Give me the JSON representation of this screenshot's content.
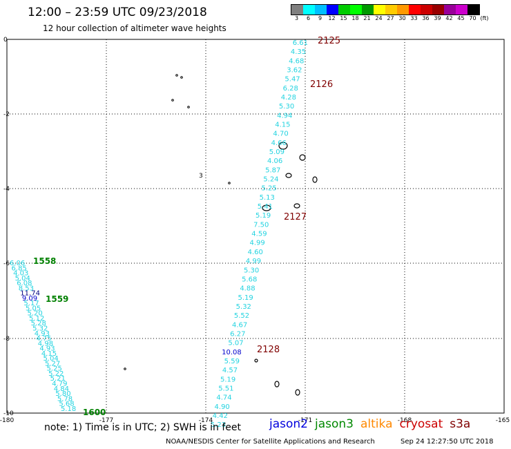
{
  "header": {
    "title": "12:00 – 23:59 UTC 09/23/2018",
    "subtitle": "12 hour collection of altimeter wave heights"
  },
  "colorbar": {
    "labels": [
      "3",
      "6",
      "9",
      "12",
      "15",
      "18",
      "21",
      "24",
      "27",
      "30",
      "33",
      "36",
      "39",
      "42",
      "45",
      "70"
    ],
    "unit": "(ft)",
    "colors": [
      "#808080",
      "#00ffff",
      "#00bfff",
      "#0000ff",
      "#00cc00",
      "#00ff00",
      "#009900",
      "#ffff00",
      "#ffcc00",
      "#ff9900",
      "#ff0000",
      "#cc0000",
      "#990000",
      "#990099",
      "#cc00cc",
      "#000000"
    ]
  },
  "axes": {
    "x_ticks": [
      "-180",
      "-177",
      "-174",
      "-171",
      "-168",
      "-165"
    ],
    "y_ticks": [
      "0",
      "-2",
      "-4",
      "-6",
      "-8",
      "-10"
    ]
  },
  "islands": [
    "3"
  ],
  "tracks": {
    "main": {
      "passes": [
        "2125",
        "2126",
        "2127",
        "2128"
      ],
      "values": [
        "6.61",
        "4.35",
        "4.68",
        "3.62",
        "5.47",
        "6.28",
        "4.28",
        "5.30",
        "4.94",
        "4.15",
        "4.70",
        "4.66",
        "5.09",
        "4.06",
        "5.87",
        "5.24",
        "5.25",
        "5.13",
        "5.41",
        "5.19",
        "7.50",
        "4.59",
        "4.99",
        "4.60",
        "4.99",
        "5.30",
        "5.68",
        "4.88",
        "5.19",
        "5.32",
        "5.52",
        "4.67",
        "6.27",
        "5.07",
        "10.08",
        "5.59",
        "4.57",
        "5.19",
        "5.51",
        "4.74",
        "4.90",
        "4.42",
        "5.23"
      ]
    },
    "west": {
      "passes": [
        "1558",
        "1559",
        "1600"
      ],
      "values": [
        "6.06",
        "6.85",
        "4.03",
        "5.04",
        "6.08",
        "8.53",
        "11.74",
        "9.09",
        "5.17",
        "5.05",
        "5.20",
        "5.12",
        "5.28",
        "5.32",
        "4.93",
        "4.75",
        "4.98",
        "4.93",
        "4.15",
        "5.04",
        "5.27",
        "5.25",
        "5.22",
        "5.21",
        "4.79",
        "4.84",
        "5.80",
        "5.78",
        "5.68",
        "5.18"
      ]
    }
  },
  "colors": {
    "cyan_value": "#22d3e0",
    "blue_value": "#0000cc",
    "navy_value": "#000080",
    "maroon_pass": "#800000",
    "green_pass": "#008000",
    "grid": "#000000"
  },
  "footer": {
    "note": "note:  1) Time is in UTC;  2) SWH is in feet",
    "legend": [
      {
        "name": "jason2",
        "color": "#0000dd"
      },
      {
        "name": "jason3",
        "color": "#008800"
      },
      {
        "name": "altika",
        "color": "#ff8800"
      },
      {
        "name": "cryosat",
        "color": "#cc0000"
      },
      {
        "name": "s3a",
        "color": "#800000"
      }
    ],
    "credit": "NOAA/NESDIS Center for Satellite Applications and Research",
    "timestamp": "Sep 24 12:27:50 UTC 2018"
  }
}
